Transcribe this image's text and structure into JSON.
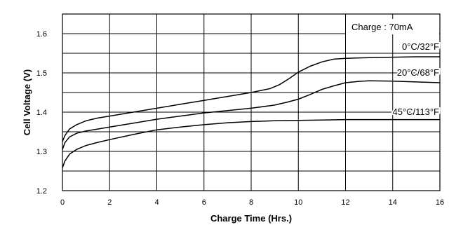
{
  "chart_data": {
    "type": "line",
    "title": "",
    "xlabel": "Charge Time (Hrs.)",
    "ylabel": "Cell Voltage (V)",
    "xlim": [
      0,
      16
    ],
    "ylim": [
      1.2,
      1.65
    ],
    "x_ticks": [
      "0",
      "2",
      "4",
      "6",
      "8",
      "10",
      "12",
      "14",
      "16"
    ],
    "y_ticks": [
      "1.2",
      "1.3",
      "1.4",
      "1.5",
      "1.6"
    ],
    "grid": true,
    "legend": "none",
    "annotation": "Charge : 70mA",
    "series": [
      {
        "name": "0°C/32°F",
        "x": [
          0,
          0.1,
          0.3,
          0.6,
          1,
          1.5,
          2,
          3,
          4,
          5,
          6,
          7,
          8,
          8.8,
          9.2,
          9.6,
          10,
          10.5,
          11,
          11.5,
          12,
          13,
          14,
          15,
          16
        ],
        "y": [
          1.325,
          1.34,
          1.357,
          1.368,
          1.378,
          1.385,
          1.39,
          1.4,
          1.41,
          1.42,
          1.43,
          1.44,
          1.45,
          1.46,
          1.47,
          1.485,
          1.502,
          1.517,
          1.528,
          1.535,
          1.537,
          1.539,
          1.54,
          1.541,
          1.541
        ]
      },
      {
        "name": "20°C/68°F",
        "x": [
          0,
          0.1,
          0.3,
          0.6,
          1,
          1.5,
          2,
          3,
          4,
          5,
          6,
          7,
          8,
          9,
          9.5,
          10,
          10.5,
          11,
          11.5,
          12,
          12.5,
          13,
          14,
          15,
          16
        ],
        "y": [
          1.305,
          1.322,
          1.337,
          1.346,
          1.352,
          1.357,
          1.362,
          1.372,
          1.382,
          1.39,
          1.398,
          1.404,
          1.41,
          1.418,
          1.425,
          1.433,
          1.445,
          1.458,
          1.467,
          1.475,
          1.478,
          1.48,
          1.479,
          1.477,
          1.475
        ]
      },
      {
        "name": "45°C/113°F",
        "x": [
          0,
          0.1,
          0.3,
          0.6,
          1,
          1.5,
          2,
          3,
          4,
          5,
          6,
          7,
          8,
          9,
          10,
          11,
          12,
          13,
          14,
          15,
          16
        ],
        "y": [
          1.258,
          1.275,
          1.293,
          1.305,
          1.315,
          1.323,
          1.33,
          1.343,
          1.355,
          1.362,
          1.368,
          1.373,
          1.376,
          1.378,
          1.379,
          1.38,
          1.381,
          1.381,
          1.381,
          1.381,
          1.381
        ]
      }
    ]
  }
}
